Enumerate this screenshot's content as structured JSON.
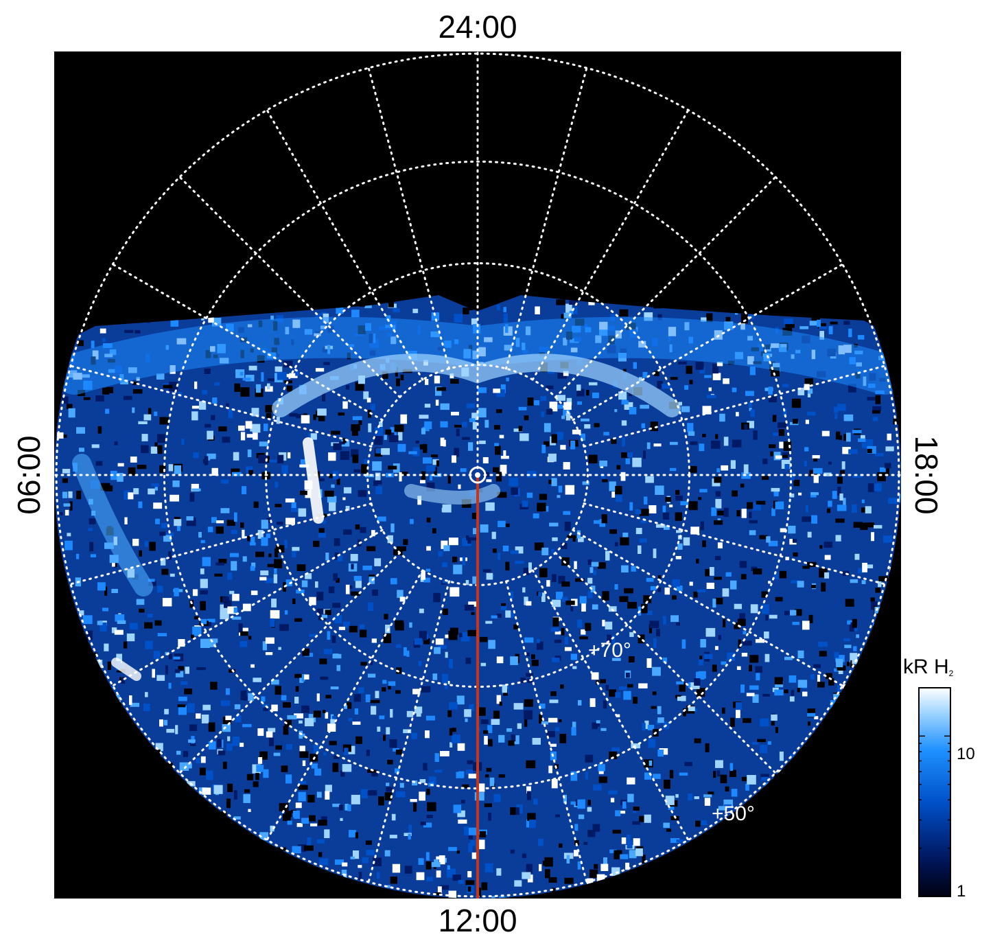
{
  "time_labels": {
    "top": "24:00",
    "bottom": "12:00",
    "left": "06:00",
    "right": "18:00"
  },
  "latitude_labels": {
    "lat70": "+70°",
    "lat50": "+50°"
  },
  "colorbar": {
    "title": "kR H",
    "title_sub": "2",
    "ticks": [
      "10",
      "1"
    ],
    "scale": "log",
    "colors": [
      "#000010",
      "#001a66",
      "#0050c8",
      "#1e90ff",
      "#9fd4ff",
      "#ffffff"
    ]
  },
  "colors": {
    "background": "#000000",
    "grid": "#ffffff",
    "meridian_line": "#c8361a",
    "emission_low": "#003a9c",
    "emission_mid": "#1e88ff",
    "emission_high": "#e8f6ff"
  }
}
